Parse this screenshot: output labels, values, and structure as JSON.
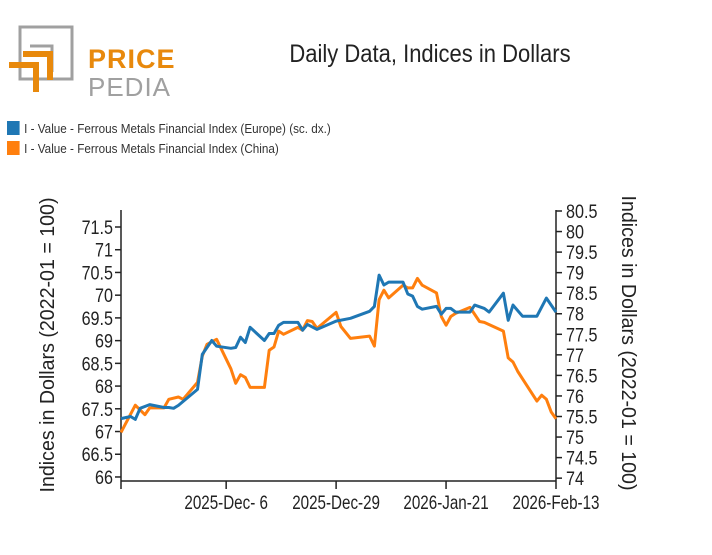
{
  "logo": {
    "line1": "PRICE",
    "line2": "PEDIA"
  },
  "chart_data": {
    "type": "line",
    "title": "Daily Data, Indices in Dollars",
    "xlabel": "",
    "ylabel_left": "Indices in Dollars (2022-01 = 100)",
    "ylabel_right": "Indices in Dollars (2022-01 = 100)",
    "xlim": [
      "2025-11-14",
      "2026-02-13"
    ],
    "x_ticks": [
      {
        "date": "2025-12-06",
        "label": "2025-Dec- 6"
      },
      {
        "date": "2025-12-29",
        "label": "2025-Dec-29"
      },
      {
        "date": "2026-01-21",
        "label": "2026-Jan-21"
      },
      {
        "date": "2026-02-13",
        "label": "2026-Feb-13"
      }
    ],
    "ylim_left": [
      65.9,
      71.8
    ],
    "ylim_right": [
      73.9,
      80.5
    ],
    "y_ticks_left": [
      "71.5",
      "71",
      "70.5",
      "70",
      "69.5",
      "69",
      "68.5",
      "68",
      "67.5",
      "67",
      "66.5",
      "66"
    ],
    "y_ticks_right": [
      "80.5",
      "80",
      "79.5",
      "79",
      "78.5",
      "78",
      "77.5",
      "77",
      "76.5",
      "76",
      "75.5",
      "75",
      "74.5",
      "74"
    ],
    "grid": false,
    "legend_position": "top-left",
    "series": [
      {
        "name": "I - Value - Ferrous Metals Financial Index (Europe) (sc. dx.)",
        "axis": "right",
        "color": "#1f77b4",
        "x": [
          "2025-11-14",
          "2025-11-16",
          "2025-11-17",
          "2025-11-18",
          "2025-11-20",
          "2025-11-23",
          "2025-11-24",
          "2025-11-25",
          "2025-11-26",
          "2025-11-30",
          "2025-12-01",
          "2025-12-03",
          "2025-12-04",
          "2025-12-07",
          "2025-12-08",
          "2025-12-09",
          "2025-12-10",
          "2025-12-11",
          "2025-12-14",
          "2025-12-15",
          "2025-12-16",
          "2025-12-17",
          "2025-12-18",
          "2025-12-21",
          "2025-12-22",
          "2025-12-23",
          "2025-12-25",
          "2025-12-29",
          "2026-01-01",
          "2026-01-05",
          "2026-01-06",
          "2026-01-07",
          "2026-01-08",
          "2026-01-09",
          "2026-01-12",
          "2026-01-13",
          "2026-01-14",
          "2026-01-15",
          "2026-01-16",
          "2026-01-19",
          "2026-01-20",
          "2026-01-21",
          "2026-01-22",
          "2026-01-23",
          "2026-01-26",
          "2026-01-27",
          "2026-01-29",
          "2026-01-30",
          "2026-02-02",
          "2026-02-03",
          "2026-02-04",
          "2026-02-06",
          "2026-02-09",
          "2026-02-11",
          "2026-02-13"
        ],
        "values": [
          75.45,
          75.5,
          75.43,
          75.7,
          75.79,
          75.72,
          75.72,
          75.7,
          75.77,
          76.16,
          77.01,
          77.35,
          77.21,
          77.16,
          77.18,
          77.43,
          77.3,
          77.67,
          77.35,
          77.52,
          77.52,
          77.72,
          77.79,
          77.79,
          77.6,
          77.74,
          77.62,
          77.82,
          77.89,
          78.06,
          78.18,
          78.94,
          78.7,
          78.77,
          78.77,
          78.48,
          78.43,
          78.18,
          78.11,
          78.18,
          77.99,
          78.13,
          78.13,
          78.04,
          78.04,
          78.21,
          78.13,
          78.04,
          78.5,
          77.84,
          78.21,
          77.94,
          77.94,
          78.38,
          78.04
        ]
      },
      {
        "name": "I - Value - Ferrous Metals Financial Index (China)",
        "axis": "left",
        "color": "#ff7f0e",
        "x": [
          "2025-11-14",
          "2025-11-17",
          "2025-11-19",
          "2025-11-20",
          "2025-11-23",
          "2025-11-24",
          "2025-11-26",
          "2025-11-27",
          "2025-11-30",
          "2025-12-01",
          "2025-12-02",
          "2025-12-04",
          "2025-12-07",
          "2025-12-08",
          "2025-12-09",
          "2025-12-10",
          "2025-12-11",
          "2025-12-14",
          "2025-12-15",
          "2025-12-16",
          "2025-12-17",
          "2025-12-18",
          "2025-12-21",
          "2025-12-22",
          "2025-12-23",
          "2025-12-24",
          "2025-12-25",
          "2025-12-29",
          "2025-12-30",
          "2026-01-01",
          "2026-01-05",
          "2026-01-06",
          "2026-01-07",
          "2026-01-08",
          "2026-01-09",
          "2026-01-12",
          "2026-01-13",
          "2026-01-14",
          "2026-01-15",
          "2026-01-16",
          "2026-01-19",
          "2026-01-20",
          "2026-01-21",
          "2026-01-22",
          "2026-01-23",
          "2026-01-26",
          "2026-01-28",
          "2026-01-29",
          "2026-02-02",
          "2026-02-03",
          "2026-02-04",
          "2026-02-05",
          "2026-02-09",
          "2026-02-10",
          "2026-02-11",
          "2026-02-12",
          "2026-02-13"
        ],
        "values": [
          66.98,
          67.58,
          67.37,
          67.52,
          67.52,
          67.71,
          67.76,
          67.71,
          68.08,
          68.66,
          68.92,
          69.03,
          68.38,
          68.06,
          68.25,
          68.19,
          67.97,
          67.97,
          68.79,
          68.86,
          69.21,
          69.14,
          69.29,
          69.23,
          69.44,
          69.42,
          69.27,
          69.62,
          69.31,
          69.05,
          69.1,
          68.88,
          69.9,
          70.11,
          69.94,
          70.22,
          70.16,
          70.16,
          70.37,
          70.22,
          70.05,
          69.53,
          69.34,
          69.53,
          69.6,
          69.73,
          69.42,
          69.4,
          69.21,
          68.62,
          68.53,
          68.32,
          67.67,
          67.8,
          67.71,
          67.43,
          67.28
        ]
      }
    ]
  }
}
